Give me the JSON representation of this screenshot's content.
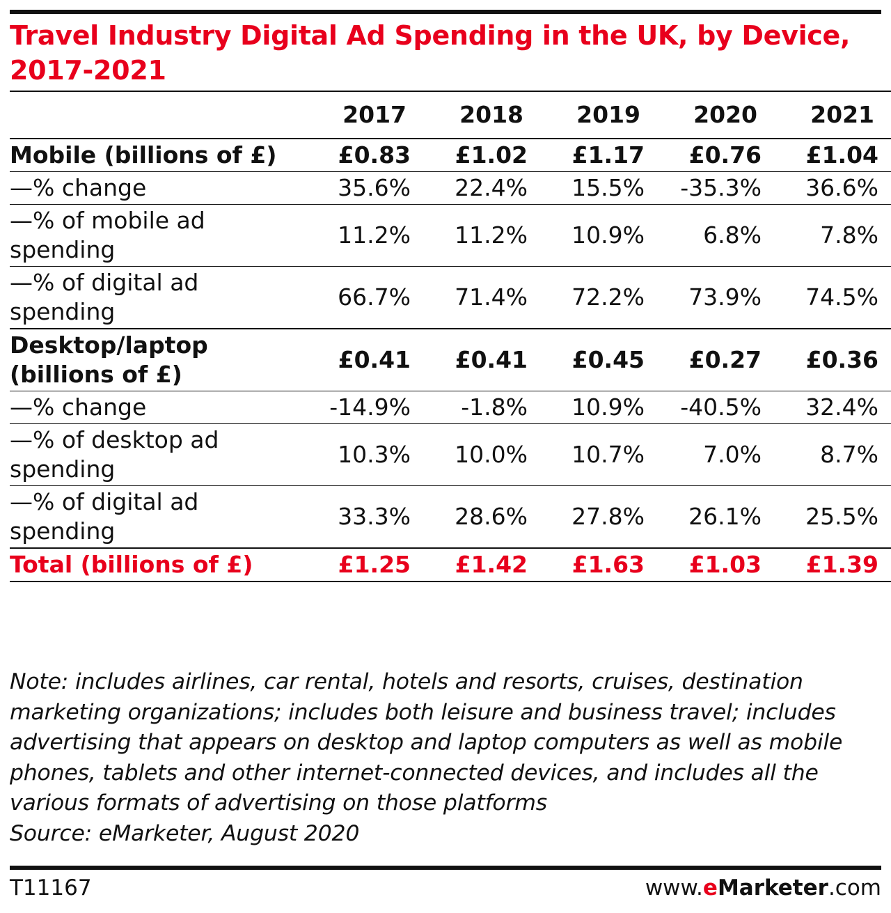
{
  "chart_data": {
    "type": "table",
    "title": "Travel Industry Digital Ad Spending in the UK, by Device, 2017-2021",
    "columns": [
      "",
      "2017",
      "2018",
      "2019",
      "2020",
      "2021"
    ],
    "rows": [
      {
        "label": "Mobile (billions of £)",
        "values": [
          "£0.83",
          "£1.02",
          "£1.17",
          "£0.76",
          "£1.04"
        ],
        "style": "bold"
      },
      {
        "label": "—% change",
        "values": [
          "35.6%",
          "22.4%",
          "15.5%",
          "-35.3%",
          "36.6%"
        ],
        "style": "normal"
      },
      {
        "label": "—% of mobile ad spending",
        "values": [
          "11.2%",
          "11.2%",
          "10.9%",
          "6.8%",
          "7.8%"
        ],
        "style": "normal"
      },
      {
        "label": "—% of digital ad spending",
        "values": [
          "66.7%",
          "71.4%",
          "72.2%",
          "73.9%",
          "74.5%"
        ],
        "style": "normal"
      },
      {
        "label": "Desktop/laptop (billions of £)",
        "values": [
          "£0.41",
          "£0.41",
          "£0.45",
          "£0.27",
          "£0.36"
        ],
        "style": "bold"
      },
      {
        "label": "—% change",
        "values": [
          "-14.9%",
          "-1.8%",
          "10.9%",
          "-40.5%",
          "32.4%"
        ],
        "style": "normal"
      },
      {
        "label": "—% of desktop ad spending",
        "values": [
          "10.3%",
          "10.0%",
          "10.7%",
          "7.0%",
          "8.7%"
        ],
        "style": "normal"
      },
      {
        "label": "—% of digital ad spending",
        "values": [
          "33.3%",
          "28.6%",
          "27.8%",
          "26.1%",
          "25.5%"
        ],
        "style": "normal"
      },
      {
        "label": "Total (billions of £)",
        "values": [
          "£1.25",
          "£1.42",
          "£1.63",
          "£1.03",
          "£1.39"
        ],
        "style": "total"
      }
    ],
    "note": "Note: includes airlines, car rental, hotels and resorts, cruises, destination marketing organizations; includes both leisure and business travel; includes advertising that appears on desktop and laptop computers as well as mobile phones, tablets and other internet-connected devices, and includes all the various formats of advertising on those platforms",
    "source": "Source: eMarketer, August 2020",
    "accent_color": "#e8001c"
  },
  "footer": {
    "code": "T11167",
    "brand_prefix": "www.",
    "brand_e": "e",
    "brand_name": "Marketer",
    "brand_suffix": ".com"
  }
}
